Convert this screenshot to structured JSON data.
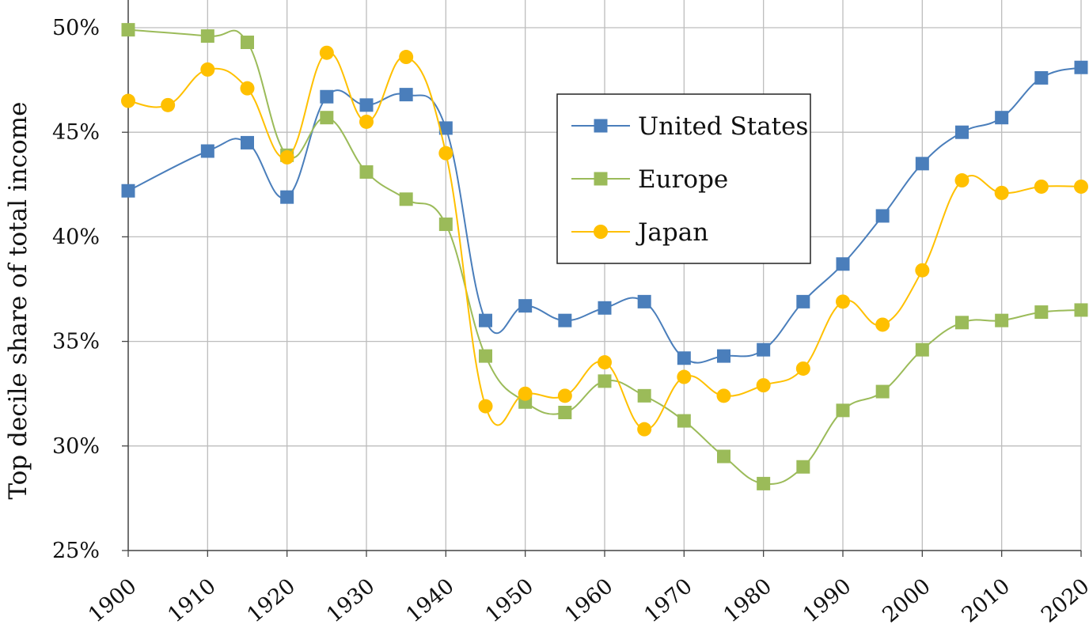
{
  "chart_data": {
    "type": "line",
    "title": "",
    "xlabel": "",
    "ylabel": "Top decile share of total income",
    "xlim": [
      1900,
      2020
    ],
    "ylim": [
      25,
      50
    ],
    "x_ticks": [
      1900,
      1910,
      1920,
      1930,
      1940,
      1950,
      1960,
      1970,
      1980,
      1990,
      2000,
      2010,
      2020
    ],
    "y_ticks": [
      25,
      30,
      35,
      40,
      45,
      50
    ],
    "y_tick_labels": [
      "25%",
      "30%",
      "35%",
      "40%",
      "45%",
      "50%"
    ],
    "grid": true,
    "legend_position": "center-right",
    "series": [
      {
        "name": "United States",
        "color": "#4A7EBB",
        "marker": "square",
        "points": [
          [
            1900,
            42.2
          ],
          [
            1910,
            44.1
          ],
          [
            1915,
            44.5
          ],
          [
            1920,
            41.9
          ],
          [
            1925,
            46.7
          ],
          [
            1930,
            46.3
          ],
          [
            1935,
            46.8
          ],
          [
            1940,
            45.2
          ],
          [
            1945,
            36.0
          ],
          [
            1950,
            36.7
          ],
          [
            1955,
            36.0
          ],
          [
            1960,
            36.6
          ],
          [
            1965,
            36.9
          ],
          [
            1970,
            34.2
          ],
          [
            1975,
            34.3
          ],
          [
            1980,
            34.6
          ],
          [
            1985,
            36.9
          ],
          [
            1990,
            38.7
          ],
          [
            1995,
            41.0
          ],
          [
            2000,
            43.5
          ],
          [
            2005,
            45.0
          ],
          [
            2010,
            45.7
          ],
          [
            2015,
            47.6
          ],
          [
            2020,
            48.1
          ]
        ]
      },
      {
        "name": "Europe",
        "color": "#9BBB59",
        "marker": "square",
        "points": [
          [
            1900,
            49.9
          ],
          [
            1910,
            49.6
          ],
          [
            1915,
            49.3
          ],
          [
            1920,
            43.9
          ],
          [
            1925,
            45.7
          ],
          [
            1930,
            43.1
          ],
          [
            1935,
            41.8
          ],
          [
            1940,
            40.6
          ],
          [
            1945,
            34.3
          ],
          [
            1950,
            32.1
          ],
          [
            1955,
            31.6
          ],
          [
            1960,
            33.1
          ],
          [
            1965,
            32.4
          ],
          [
            1970,
            31.2
          ],
          [
            1975,
            29.5
          ],
          [
            1980,
            28.2
          ],
          [
            1985,
            29.0
          ],
          [
            1990,
            31.7
          ],
          [
            1995,
            32.6
          ],
          [
            2000,
            34.6
          ],
          [
            2005,
            35.9
          ],
          [
            2010,
            36.0
          ],
          [
            2015,
            36.4
          ],
          [
            2020,
            36.5
          ]
        ]
      },
      {
        "name": "Japan",
        "color": "#FFC000",
        "marker": "circle",
        "points": [
          [
            1900,
            46.5
          ],
          [
            1905,
            46.3
          ],
          [
            1910,
            48.0
          ],
          [
            1915,
            47.1
          ],
          [
            1920,
            43.8
          ],
          [
            1925,
            48.8
          ],
          [
            1930,
            45.5
          ],
          [
            1935,
            48.6
          ],
          [
            1940,
            44.0
          ],
          [
            1945,
            31.9
          ],
          [
            1950,
            32.5
          ],
          [
            1955,
            32.4
          ],
          [
            1960,
            34.0
          ],
          [
            1965,
            30.8
          ],
          [
            1970,
            33.3
          ],
          [
            1975,
            32.4
          ],
          [
            1980,
            32.9
          ],
          [
            1985,
            33.7
          ],
          [
            1990,
            36.9
          ],
          [
            1995,
            35.8
          ],
          [
            2000,
            38.4
          ],
          [
            2005,
            42.7
          ],
          [
            2010,
            42.1
          ],
          [
            2015,
            42.4
          ],
          [
            2020,
            42.4
          ]
        ]
      }
    ]
  }
}
